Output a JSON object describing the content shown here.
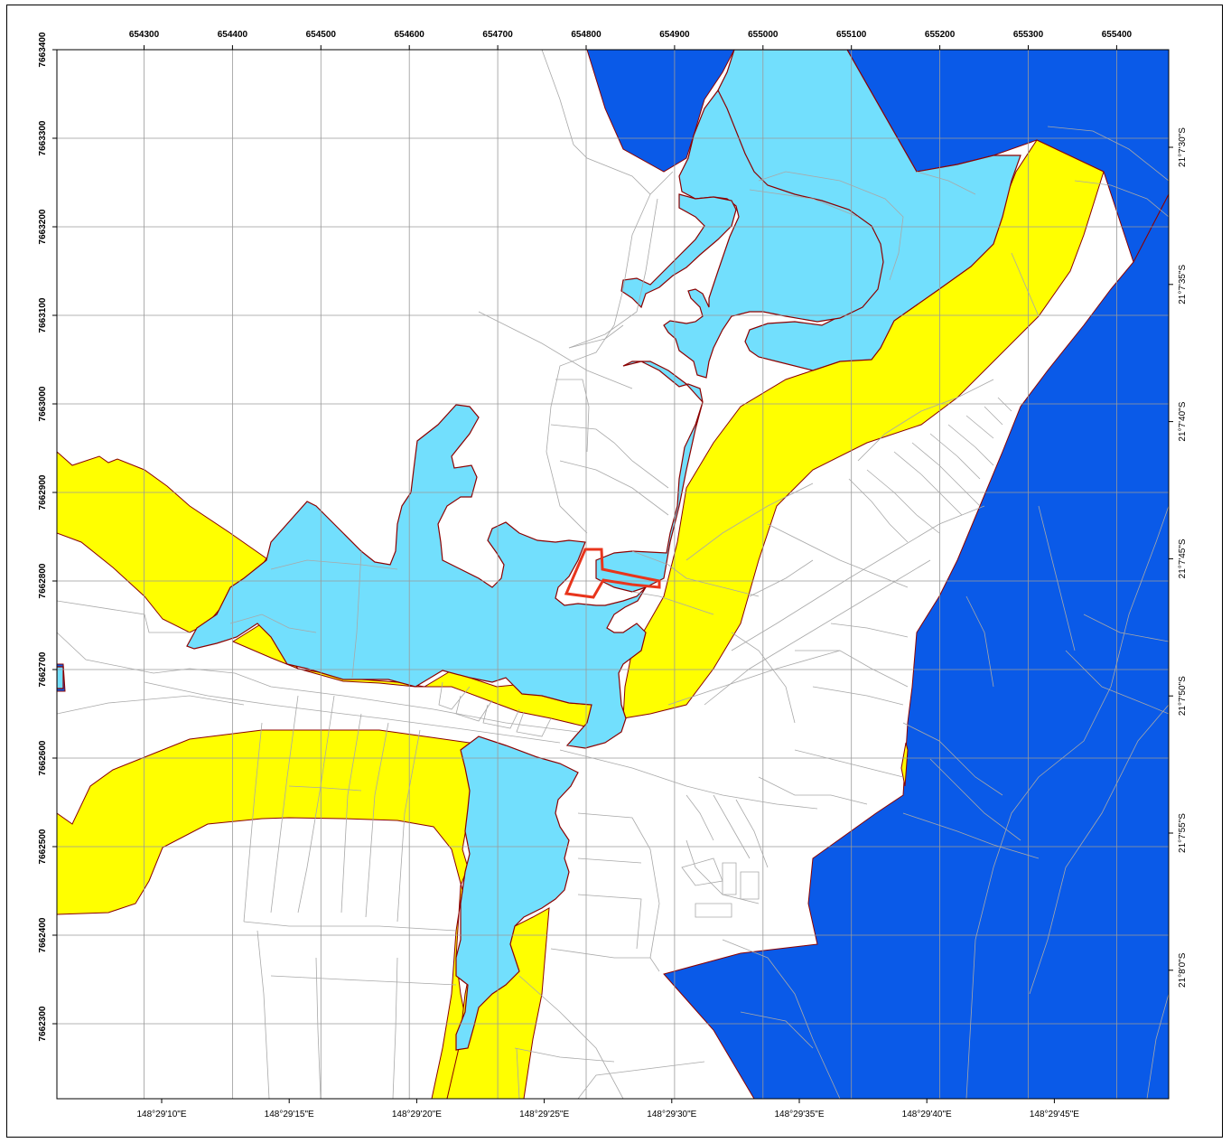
{
  "map": {
    "colors": {
      "sea": "#0a5ae8",
      "water": "#72dffd",
      "buffer": "#ffff00",
      "boundary": "#8b0000",
      "site": "#e8351c",
      "grid": "#9a9a9a",
      "parcel": "#a8a8a8"
    },
    "easting_labels": [
      "654300",
      "654400",
      "654500",
      "654600",
      "654700",
      "654800",
      "654900",
      "655000",
      "655100",
      "655200",
      "655300",
      "655400"
    ],
    "northing_labels": [
      "7663400",
      "7663300",
      "7663200",
      "7663100",
      "7663000",
      "7662900",
      "7662800",
      "7662700",
      "7662600",
      "7662500",
      "7662400",
      "7662300"
    ],
    "longitude_labels": [
      "148°29'10\"E",
      "148°29'15\"E",
      "148°29'20\"E",
      "148°29'25\"E",
      "148°29'30\"E",
      "148°29'35\"E",
      "148°29'40\"E",
      "148°29'45\"E"
    ],
    "latitude_labels": [
      "21°7'30\"S",
      "21°7'35\"S",
      "21°7'40\"S",
      "21°7'45\"S",
      "21°7'50\"S",
      "21°7'55\"S",
      "21°8'0\"S"
    ]
  }
}
